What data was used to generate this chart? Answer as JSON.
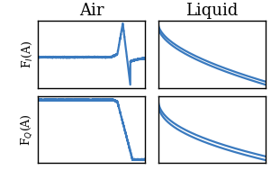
{
  "title_air": "Air",
  "title_liquid": "Liquid",
  "ylabel_top": "F$_I$(A)",
  "ylabel_bottom": "F$_Q$(A)",
  "line_color": "#3a7abf",
  "linewidth": 1.6,
  "background": "#ffffff",
  "figsize": [
    3.01,
    1.89
  ],
  "dpi": 100
}
